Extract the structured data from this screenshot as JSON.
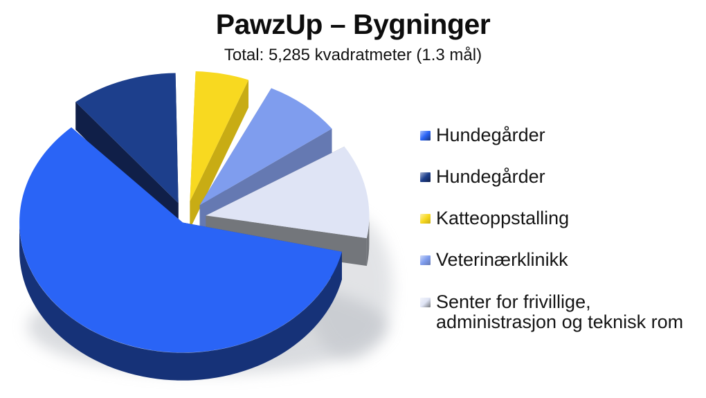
{
  "chart_data": {
    "type": "pie",
    "style": "3d-exploded",
    "title": "PawzUp – Bygninger",
    "subtitle": "Total: 5,285 kvadratmeter (1.3 mål)",
    "total_sqm": 5285,
    "total_mal": 1.3,
    "legend_position": "right",
    "data_labels_shown": false,
    "slices": [
      {
        "label": "Hundegårder",
        "percent_est": 63,
        "sqm_est": 3330,
        "color_top": "#2A64F6",
        "color_side": "#163278",
        "start_deg": 103,
        "end_deg": 317,
        "explode": 8
      },
      {
        "label": "Hundegårder",
        "percent_est": 11,
        "sqm_est": 580,
        "color_top": "#1D3F8C",
        "color_side": "#101F48",
        "start_deg": 321,
        "end_deg": 359,
        "explode": 30
      },
      {
        "label": "Katteoppstalling",
        "percent_est": 6,
        "sqm_est": 315,
        "color_top": "#F8D920",
        "color_side": "#C8AC14",
        "start_deg": 2,
        "end_deg": 21,
        "explode": 32
      },
      {
        "label": "Veterinærklinikk",
        "percent_est": 8,
        "sqm_est": 425,
        "color_top": "#7F9DEE",
        "color_side": "#6579B2",
        "start_deg": 26,
        "end_deg": 54,
        "explode": 32
      },
      {
        "label": "Senter for frivillige, administrasjon og teknisk rom",
        "percent_est": 12,
        "sqm_est": 635,
        "color_top": "#DFE4F5",
        "color_side": "#73767B",
        "start_deg": 58,
        "end_deg": 100,
        "explode": 30
      }
    ],
    "shadow_color": "#b4b8bf"
  }
}
